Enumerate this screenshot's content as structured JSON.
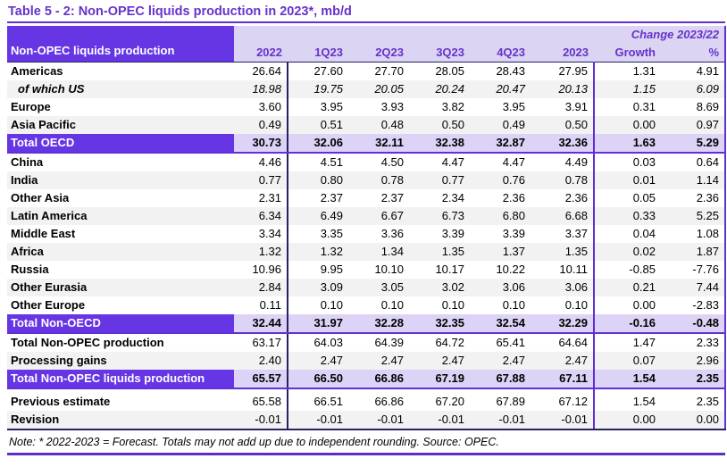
{
  "title": "Table 5 - 2: Non-OPEC liquids production in 2023*, mb/d",
  "note": "Note: * 2022-2023 = Forecast. Totals may not add up due to independent rounding. Source: OPEC.",
  "colors": {
    "accent_purple_block": "#6736e4",
    "header_text_purple": "#6633cc",
    "header_lavender": "#dbd4f2",
    "total_row_lavender": "#dcd3f6",
    "alt_row_gray": "#f2f2f2",
    "rule_dark_navy": "#262262",
    "rule_purple": "#6130d6"
  },
  "table": {
    "label_header": "Non-OPEC liquids production",
    "change_header": "Change 2023/22",
    "columns": [
      "2022",
      "1Q23",
      "2Q23",
      "3Q23",
      "4Q23",
      "2023",
      "Growth",
      "%"
    ],
    "rows": [
      {
        "label": "Americas",
        "style": "plain",
        "values": [
          "26.64",
          "27.60",
          "27.70",
          "28.05",
          "28.43",
          "27.95",
          "1.31",
          "4.91"
        ]
      },
      {
        "label": "of which US",
        "style": "italic",
        "values": [
          "18.98",
          "19.75",
          "20.05",
          "20.24",
          "20.47",
          "20.13",
          "1.15",
          "6.09"
        ]
      },
      {
        "label": "Europe",
        "style": "plain",
        "values": [
          "3.60",
          "3.95",
          "3.93",
          "3.82",
          "3.95",
          "3.91",
          "0.31",
          "8.69"
        ]
      },
      {
        "label": "Asia Pacific",
        "style": "plain",
        "values": [
          "0.49",
          "0.51",
          "0.48",
          "0.50",
          "0.49",
          "0.50",
          "0.00",
          "0.97"
        ]
      },
      {
        "label": "Total OECD",
        "style": "total",
        "values": [
          "30.73",
          "32.06",
          "32.11",
          "32.38",
          "32.87",
          "32.36",
          "1.63",
          "5.29"
        ]
      },
      {
        "label": "China",
        "style": "plain",
        "values": [
          "4.46",
          "4.51",
          "4.50",
          "4.47",
          "4.47",
          "4.49",
          "0.03",
          "0.64"
        ]
      },
      {
        "label": "India",
        "style": "plain",
        "values": [
          "0.77",
          "0.80",
          "0.78",
          "0.77",
          "0.76",
          "0.78",
          "0.01",
          "1.14"
        ]
      },
      {
        "label": "Other Asia",
        "style": "plain",
        "values": [
          "2.31",
          "2.37",
          "2.37",
          "2.34",
          "2.36",
          "2.36",
          "0.05",
          "2.36"
        ]
      },
      {
        "label": "Latin America",
        "style": "plain",
        "values": [
          "6.34",
          "6.49",
          "6.67",
          "6.73",
          "6.80",
          "6.68",
          "0.33",
          "5.25"
        ]
      },
      {
        "label": "Middle East",
        "style": "plain",
        "values": [
          "3.34",
          "3.35",
          "3.36",
          "3.39",
          "3.39",
          "3.37",
          "0.04",
          "1.08"
        ]
      },
      {
        "label": "Africa",
        "style": "plain",
        "values": [
          "1.32",
          "1.32",
          "1.34",
          "1.35",
          "1.37",
          "1.35",
          "0.02",
          "1.87"
        ]
      },
      {
        "label": "Russia",
        "style": "plain",
        "values": [
          "10.96",
          "9.95",
          "10.10",
          "10.17",
          "10.22",
          "10.11",
          "-0.85",
          "-7.76"
        ]
      },
      {
        "label": "Other Eurasia",
        "style": "plain",
        "values": [
          "2.84",
          "3.09",
          "3.05",
          "3.02",
          "3.06",
          "3.06",
          "0.21",
          "7.44"
        ]
      },
      {
        "label": "Other Europe",
        "style": "plain",
        "values": [
          "0.11",
          "0.10",
          "0.10",
          "0.10",
          "0.10",
          "0.10",
          "0.00",
          "-2.83"
        ]
      },
      {
        "label": "Total Non-OECD",
        "style": "total",
        "values": [
          "32.44",
          "31.97",
          "32.28",
          "32.35",
          "32.54",
          "32.29",
          "-0.16",
          "-0.48"
        ]
      },
      {
        "label": "Total Non-OPEC production",
        "style": "plain",
        "values": [
          "63.17",
          "64.03",
          "64.39",
          "64.72",
          "65.41",
          "64.64",
          "1.47",
          "2.33"
        ]
      },
      {
        "label": "Processing gains",
        "style": "plain",
        "values": [
          "2.40",
          "2.47",
          "2.47",
          "2.47",
          "2.47",
          "2.47",
          "0.07",
          "2.96"
        ]
      },
      {
        "label": "Total Non-OPEC liquids production",
        "style": "total",
        "gap_after": true,
        "values": [
          "65.57",
          "66.50",
          "66.86",
          "67.19",
          "67.88",
          "67.11",
          "1.54",
          "2.35"
        ]
      },
      {
        "label": "Previous estimate",
        "style": "plain",
        "values": [
          "65.58",
          "66.51",
          "66.86",
          "67.20",
          "67.89",
          "67.12",
          "1.54",
          "2.35"
        ]
      },
      {
        "label": "Revision",
        "style": "plain",
        "last": true,
        "values": [
          "-0.01",
          "-0.01",
          "-0.01",
          "-0.01",
          "-0.01",
          "-0.01",
          "0.00",
          "0.00"
        ]
      }
    ]
  }
}
